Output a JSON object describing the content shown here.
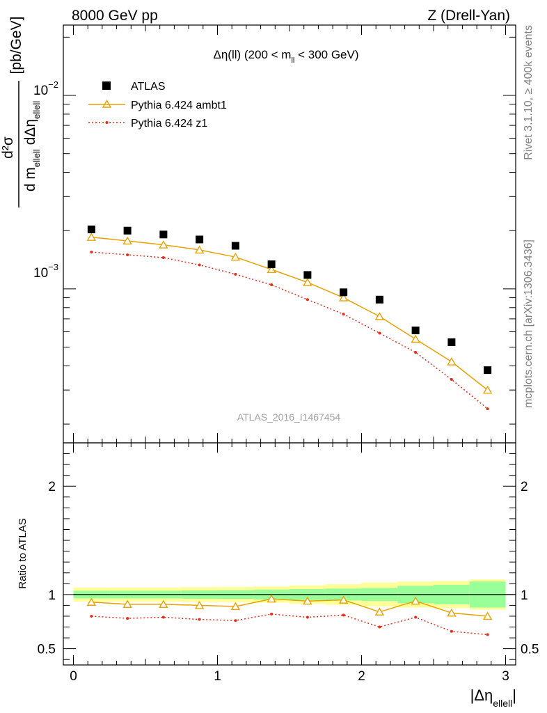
{
  "header": {
    "left": "8000 GeV pp",
    "right": "Z (Drell-Yan)"
  },
  "side_labels": {
    "rivet": "Rivet 3.1.10, ≥ 400k events",
    "mcplots": "mcplots.cern.ch [arXiv:1306.3436]"
  },
  "chart_data": [
    {
      "type": "scatter",
      "panel": "main",
      "title": "Δη(ll) (200 < m_ll < 300 GeV)",
      "title_parts": {
        "pre": "Δη(ll) (200 < m",
        "sub": "ll",
        "post": " < 300 GeV)"
      },
      "ylabel": "d²σ / d m_ellell dΔη_ellell [pb/GeV]",
      "ylabel_parts": {
        "num": "d²σ",
        "den_a": "d m",
        "den_sub_a": "ellell",
        "den_b": " dΔη",
        "den_sub_b": "ellell",
        "unit": "[pb/GeV]"
      },
      "yscale": "log",
      "ylim": [
        0.00016,
        0.0231
      ],
      "xlim": [
        -0.07,
        3.07
      ],
      "ytick_labels": [
        {
          "value": 0.01,
          "base": "10",
          "exp": "−2"
        },
        {
          "value": 0.001,
          "base": "10",
          "exp": "−3"
        }
      ],
      "analysis_id": "ATLAS_2016_I1467454",
      "x": [
        0.125,
        0.375,
        0.625,
        0.875,
        1.125,
        1.375,
        1.625,
        1.875,
        2.125,
        2.375,
        2.625,
        2.875
      ],
      "series": [
        {
          "name": "ATLAS",
          "style": "square",
          "color": "#000000",
          "values": [
            0.00203,
            0.002,
            0.00191,
            0.0018,
            0.00167,
            0.00134,
            0.00118,
            0.00096,
            0.00088,
            0.00061,
            0.00053,
            0.00038
          ]
        },
        {
          "name": "Pythia 6.424 ambt1",
          "style": "triangle-solid",
          "color": "#e8a100",
          "values": [
            0.00185,
            0.00177,
            0.00169,
            0.00159,
            0.00146,
            0.00126,
            0.00108,
            0.0009,
            0.00072,
            0.00055,
            0.00042,
            0.0003
          ]
        },
        {
          "name": "Pythia 6.424 z1",
          "style": "dot-dotted",
          "color": "#e62b17",
          "values": [
            0.00155,
            0.0015,
            0.00145,
            0.00133,
            0.00119,
            0.00105,
            0.00088,
            0.00074,
            0.00059,
            0.00047,
            0.00034,
            0.00024
          ]
        }
      ],
      "legend": {
        "placement": "top-left",
        "entries": [
          "ATLAS",
          "Pythia 6.424 ambt1",
          "Pythia 6.424 z1"
        ]
      }
    },
    {
      "type": "scatter",
      "panel": "ratio",
      "ylabel": "Ratio to ATLAS",
      "xlabel": "|Δη_ellell|",
      "xlabel_parts": {
        "pre": "|Δη",
        "sub": "ellell",
        "post": "|"
      },
      "ylim": [
        0.35,
        2.4
      ],
      "xlim": [
        -0.07,
        3.07
      ],
      "xtick_labels": [
        "0",
        "1",
        "2",
        "3"
      ],
      "ytick_labels": [
        "0.5",
        "1",
        "2"
      ],
      "x": [
        0.125,
        0.375,
        0.625,
        0.875,
        1.125,
        1.375,
        1.625,
        1.875,
        2.125,
        2.375,
        2.625,
        2.875
      ],
      "bin_edges": [
        0,
        0.25,
        0.5,
        0.75,
        1.0,
        1.25,
        1.5,
        1.75,
        2.0,
        2.25,
        2.5,
        2.75,
        3.0
      ],
      "bands": {
        "stat_half": [
          0.035,
          0.035,
          0.035,
          0.038,
          0.04,
          0.045,
          0.05,
          0.055,
          0.06,
          0.08,
          0.09,
          0.12
        ],
        "total_half": [
          0.065,
          0.065,
          0.065,
          0.068,
          0.07,
          0.075,
          0.085,
          0.095,
          0.11,
          0.12,
          0.125,
          0.14
        ]
      },
      "series": [
        {
          "name": "Pythia 6.424 ambt1",
          "style": "triangle-solid",
          "color": "#e8a100",
          "values": [
            0.93,
            0.91,
            0.91,
            0.9,
            0.89,
            0.96,
            0.94,
            0.95,
            0.84,
            0.94,
            0.83,
            0.8
          ]
        },
        {
          "name": "Pythia 6.424 z1",
          "style": "dot-dotted",
          "color": "#e62b17",
          "values": [
            0.8,
            0.78,
            0.79,
            0.77,
            0.76,
            0.82,
            0.79,
            0.81,
            0.7,
            0.79,
            0.66,
            0.63
          ]
        }
      ]
    }
  ]
}
